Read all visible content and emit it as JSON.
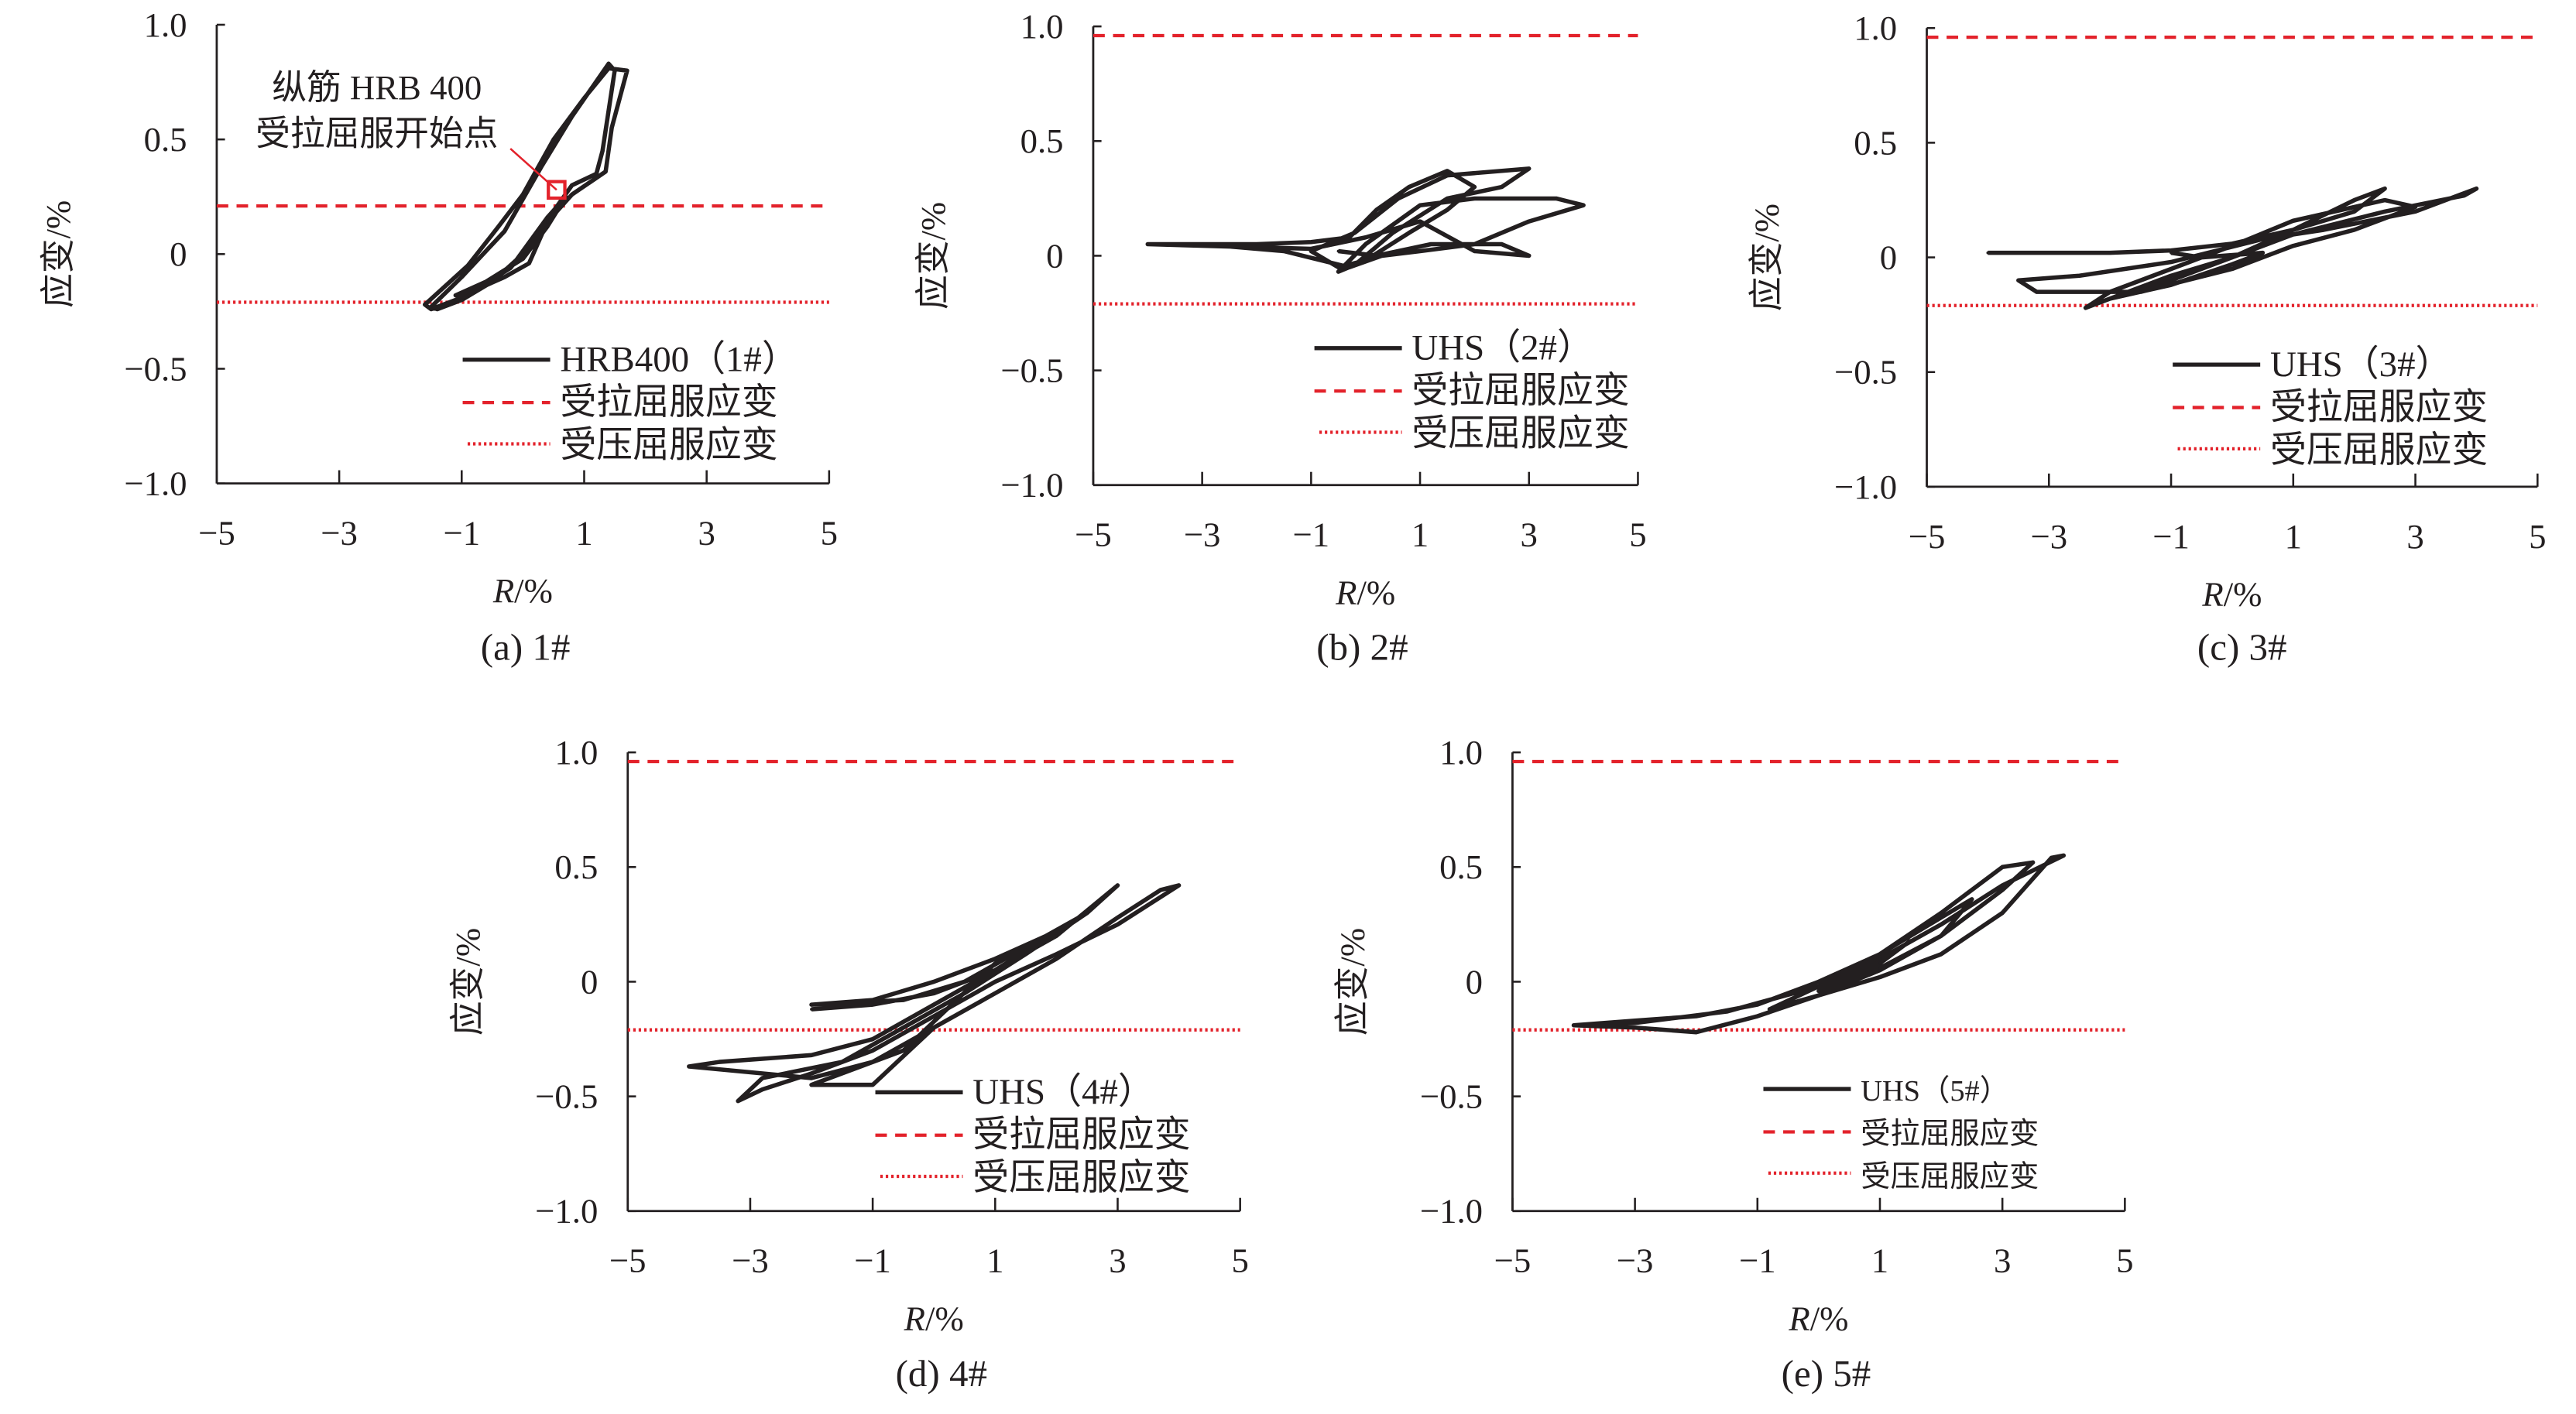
{
  "colors": {
    "curve": "#231f20",
    "yield": "#e3222b",
    "axis": "#231f20"
  },
  "chart_data": [
    {
      "id": "a",
      "type": "line",
      "caption": "(a) 1#",
      "xlabel_italic": "R",
      "xlabel_rest": "/%",
      "ylabel": "应变/%",
      "xlim": [
        -5,
        5
      ],
      "ylim": [
        -1.0,
        1.0
      ],
      "xticks": [
        "−5",
        "−3",
        "−1",
        "1",
        "3",
        "5"
      ],
      "xtick_values": [
        -5,
        -3,
        -1,
        1,
        3,
        5
      ],
      "yticks": [
        "1.0",
        "0.5",
        "0",
        "−0.5",
        "−1.0"
      ],
      "ytick_values": [
        1,
        0.5,
        0,
        -0.5,
        -1
      ],
      "tension_yield": 0.21,
      "compression_yield": -0.21,
      "legend": [
        "HRB400（1#）",
        "受拉屈服应变",
        "受压屈服应变"
      ],
      "annotation": {
        "lines": [
          "纵筋 HRB 400",
          "受拉屈服开始点"
        ],
        "point": [
          0.55,
          0.28
        ]
      },
      "series": [
        [
          0,
          0
        ],
        [
          -0.5,
          -0.12
        ],
        [
          -1.0,
          -0.2
        ],
        [
          -1.4,
          -0.24
        ],
        [
          -1.5,
          -0.23
        ],
        [
          -1.0,
          -0.1
        ],
        [
          -0.3,
          0.1
        ],
        [
          0.3,
          0.38
        ],
        [
          0.8,
          0.6
        ],
        [
          1.4,
          0.83
        ],
        [
          1.5,
          0.8
        ],
        [
          1.3,
          0.45
        ],
        [
          1.2,
          0.35
        ],
        [
          0.8,
          0.3
        ],
        [
          0.4,
          0.15
        ],
        [
          -0.2,
          -0.06
        ],
        [
          -0.9,
          -0.18
        ],
        [
          -1.5,
          -0.24
        ],
        [
          -1.6,
          -0.22
        ],
        [
          -0.9,
          -0.05
        ],
        [
          -0.4,
          0.12
        ],
        [
          0,
          0.26
        ],
        [
          0.5,
          0.5
        ],
        [
          1.0,
          0.68
        ],
        [
          1.4,
          0.81
        ],
        [
          1.7,
          0.8
        ],
        [
          1.45,
          0.55
        ],
        [
          1.35,
          0.36
        ],
        [
          0.8,
          0.26
        ],
        [
          0.4,
          0.14
        ],
        [
          0.1,
          -0.04
        ],
        [
          -0.3,
          -0.1
        ],
        [
          -0.8,
          -0.16
        ],
        [
          -1.1,
          -0.18
        ],
        [
          -0.6,
          -0.12
        ],
        [
          0.0,
          -0.02
        ],
        [
          0.4,
          0.12
        ],
        [
          0.7,
          0.25
        ],
        [
          0.4,
          0.16
        ],
        [
          -0.2,
          -0.06
        ]
      ]
    },
    {
      "id": "b",
      "type": "line",
      "caption": "(b) 2#",
      "xlabel_italic": "R",
      "xlabel_rest": "/%",
      "ylabel": "应变/%",
      "xlim": [
        -5,
        5
      ],
      "ylim": [
        -1.0,
        1.0
      ],
      "xticks": [
        "−5",
        "−3",
        "−1",
        "1",
        "3",
        "5"
      ],
      "xtick_values": [
        -5,
        -3,
        -1,
        1,
        3,
        5
      ],
      "yticks": [
        "1.0",
        "0.5",
        "0",
        "−0.5",
        "−1.0"
      ],
      "ytick_values": [
        1,
        0.5,
        0,
        -0.5,
        -1
      ],
      "tension_yield": 0.96,
      "compression_yield": -0.21,
      "legend": [
        "UHS（2#）",
        "受拉屈服应变",
        "受压屈服应变"
      ],
      "series": [
        [
          -4,
          0.05
        ],
        [
          -2,
          0.05
        ],
        [
          -1,
          0.06
        ],
        [
          -0.3,
          0.08
        ],
        [
          0.2,
          0.2
        ],
        [
          0.8,
          0.3
        ],
        [
          1.5,
          0.37
        ],
        [
          2,
          0.3
        ],
        [
          1.5,
          0.2
        ],
        [
          0.8,
          0.1
        ],
        [
          0,
          -0.02
        ],
        [
          -0.5,
          -0.05
        ],
        [
          -1,
          0.02
        ],
        [
          -0.2,
          0.1
        ],
        [
          0.6,
          0.25
        ],
        [
          1.5,
          0.35
        ],
        [
          3,
          0.38
        ],
        [
          2.5,
          0.3
        ],
        [
          1.5,
          0.25
        ],
        [
          0.5,
          0.1
        ],
        [
          -0.2,
          -0.04
        ],
        [
          -0.5,
          -0.07
        ],
        [
          0,
          0.05
        ],
        [
          1,
          0.22
        ],
        [
          2,
          0.25
        ],
        [
          3.5,
          0.25
        ],
        [
          4,
          0.22
        ],
        [
          3,
          0.15
        ],
        [
          2,
          0.05
        ],
        [
          1,
          0.02
        ],
        [
          0.3,
          0.0
        ],
        [
          -0.3,
          -0.05
        ],
        [
          -1.5,
          0.02
        ],
        [
          -3,
          0.05
        ],
        [
          -4,
          0.05
        ],
        [
          -1,
          0.03
        ],
        [
          0,
          0.08
        ],
        [
          1,
          0.15
        ],
        [
          2,
          0.02
        ],
        [
          3,
          0.0
        ],
        [
          2.5,
          0.05
        ],
        [
          1.2,
          0.05
        ],
        [
          0.2,
          0.0
        ],
        [
          -0.5,
          0.02
        ]
      ]
    },
    {
      "id": "c",
      "type": "line",
      "caption": "(c) 3#",
      "xlabel_italic": "R",
      "xlabel_rest": "/%",
      "ylabel": "应变/%",
      "xlim": [
        -5,
        5
      ],
      "ylim": [
        -1.0,
        1.0
      ],
      "xticks": [
        "−5",
        "−3",
        "−1",
        "1",
        "3",
        "5"
      ],
      "xtick_values": [
        -5,
        -3,
        -1,
        1,
        3,
        5
      ],
      "yticks": [
        "1.0",
        "0.5",
        "0",
        "−0.5",
        "−1.0"
      ],
      "ytick_values": [
        1,
        0.5,
        0,
        -0.5,
        -1
      ],
      "tension_yield": 0.96,
      "compression_yield": -0.21,
      "legend": [
        "UHS（3#）",
        "受拉屈服应变",
        "受压屈服应变"
      ],
      "series": [
        [
          -4,
          0.02
        ],
        [
          -2,
          0.02
        ],
        [
          -1,
          0.03
        ],
        [
          0,
          0.06
        ],
        [
          1,
          0.12
        ],
        [
          2,
          0.2
        ],
        [
          2.5,
          0.3
        ],
        [
          2,
          0.25
        ],
        [
          1,
          0.12
        ],
        [
          0,
          0.0
        ],
        [
          -1,
          -0.08
        ],
        [
          -2,
          -0.18
        ],
        [
          -2.4,
          -0.22
        ],
        [
          -2,
          -0.15
        ],
        [
          -1,
          -0.05
        ],
        [
          0,
          0.05
        ],
        [
          1,
          0.16
        ],
        [
          2.5,
          0.25
        ],
        [
          3,
          0.22
        ],
        [
          2,
          0.12
        ],
        [
          1,
          0.05
        ],
        [
          0,
          -0.05
        ],
        [
          -1.5,
          -0.15
        ],
        [
          -3.2,
          -0.15
        ],
        [
          -3.5,
          -0.1
        ],
        [
          -2.5,
          -0.08
        ],
        [
          -1,
          -0.02
        ],
        [
          0.5,
          0.08
        ],
        [
          1.5,
          0.12
        ],
        [
          3,
          0.2
        ],
        [
          4,
          0.3
        ],
        [
          3.8,
          0.27
        ],
        [
          2.5,
          0.2
        ],
        [
          1,
          0.1
        ],
        [
          0,
          0.0
        ],
        [
          -1,
          -0.1
        ],
        [
          -2,
          -0.18
        ],
        [
          -1,
          -0.12
        ],
        [
          0,
          -0.03
        ],
        [
          0.5,
          0.02
        ],
        [
          -0.5,
          0.0
        ],
        [
          -1,
          0.02
        ]
      ]
    },
    {
      "id": "d",
      "type": "line",
      "caption": "(d) 4#",
      "xlabel_italic": "R",
      "xlabel_rest": "/%",
      "ylabel": "应变/%",
      "xlim": [
        -5,
        5
      ],
      "ylim": [
        -1.0,
        1.0
      ],
      "xticks": [
        "−5",
        "−3",
        "−1",
        "1",
        "3",
        "5"
      ],
      "xtick_values": [
        -5,
        -3,
        -1,
        1,
        3,
        5
      ],
      "yticks": [
        "1.0",
        "0.5",
        "0",
        "−0.5",
        "−1.0"
      ],
      "ytick_values": [
        1,
        0.5,
        0,
        -0.5,
        -1
      ],
      "tension_yield": 0.96,
      "compression_yield": -0.21,
      "legend": [
        "UHS（4#）",
        "受拉屈服应变",
        "受压屈服应变"
      ],
      "series": [
        [
          -2,
          -0.12
        ],
        [
          -1,
          -0.1
        ],
        [
          0,
          -0.05
        ],
        [
          1,
          0.05
        ],
        [
          2,
          0.2
        ],
        [
          3,
          0.42
        ],
        [
          2.5,
          0.3
        ],
        [
          1.5,
          0.12
        ],
        [
          0.5,
          -0.05
        ],
        [
          -0.5,
          -0.2
        ],
        [
          -1.5,
          -0.35
        ],
        [
          -2.8,
          -0.42
        ],
        [
          -3.2,
          -0.52
        ],
        [
          -2.8,
          -0.47
        ],
        [
          -2,
          -0.4
        ],
        [
          -1,
          -0.3
        ],
        [
          0,
          -0.15
        ],
        [
          1,
          0.0
        ],
        [
          2,
          0.12
        ],
        [
          3,
          0.25
        ],
        [
          4,
          0.42
        ],
        [
          3.7,
          0.4
        ],
        [
          3,
          0.28
        ],
        [
          2,
          0.1
        ],
        [
          1,
          -0.05
        ],
        [
          0,
          -0.2
        ],
        [
          -1,
          -0.35
        ],
        [
          -2,
          -0.42
        ],
        [
          -4,
          -0.37
        ],
        [
          -3.5,
          -0.35
        ],
        [
          -2,
          -0.32
        ],
        [
          -1,
          -0.25
        ],
        [
          0,
          -0.1
        ],
        [
          1,
          0.05
        ],
        [
          2.5,
          0.3
        ],
        [
          1.5,
          0.15
        ],
        [
          0.5,
          0.0
        ],
        [
          -0.5,
          -0.08
        ],
        [
          -2,
          -0.1
        ],
        [
          -1,
          -0.08
        ],
        [
          0,
          0.0
        ],
        [
          1,
          0.1
        ],
        [
          2,
          0.22
        ],
        [
          1,
          0.08
        ],
        [
          -0.5,
          -0.3
        ],
        [
          -2,
          -0.45
        ],
        [
          -1,
          -0.45
        ],
        [
          0,
          -0.2
        ]
      ]
    },
    {
      "id": "e",
      "type": "line",
      "caption": "(e) 5#",
      "xlabel_italic": "R",
      "xlabel_rest": "/%",
      "ylabel": "应变/%",
      "xlim": [
        -5,
        5
      ],
      "ylim": [
        -1.0,
        1.0
      ],
      "xticks": [
        "−5",
        "−3",
        "−1",
        "1",
        "3",
        "5"
      ],
      "xtick_values": [
        -5,
        -3,
        -1,
        1,
        3,
        5
      ],
      "yticks": [
        "1.0",
        "0.5",
        "0",
        "−0.5",
        "−1.0"
      ],
      "ytick_values": [
        1,
        0.5,
        0,
        -0.5,
        -1
      ],
      "tension_yield": 0.96,
      "compression_yield": -0.21,
      "legend": [
        "UHS（5#）",
        "受拉屈服应变",
        "受压屈服应变"
      ],
      "series": [
        [
          -4,
          -0.19
        ],
        [
          -3,
          -0.17
        ],
        [
          -2,
          -0.15
        ],
        [
          -1,
          -0.1
        ],
        [
          0,
          0.0
        ],
        [
          1,
          0.12
        ],
        [
          2,
          0.3
        ],
        [
          3,
          0.5
        ],
        [
          3.5,
          0.52
        ],
        [
          3,
          0.4
        ],
        [
          2,
          0.2
        ],
        [
          1,
          0.05
        ],
        [
          0,
          -0.06
        ],
        [
          -1,
          -0.15
        ],
        [
          -2,
          -0.22
        ],
        [
          -3,
          -0.2
        ],
        [
          -4,
          -0.19
        ],
        [
          -3,
          -0.18
        ],
        [
          -1.5,
          -0.13
        ],
        [
          0,
          -0.02
        ],
        [
          1,
          0.1
        ],
        [
          2,
          0.25
        ],
        [
          3,
          0.42
        ],
        [
          4,
          0.55
        ],
        [
          3.8,
          0.54
        ],
        [
          3,
          0.3
        ],
        [
          2,
          0.12
        ],
        [
          1,
          0.02
        ],
        [
          0,
          -0.06
        ],
        [
          -0.8,
          -0.12
        ],
        [
          0,
          -0.02
        ],
        [
          1,
          0.12
        ],
        [
          2,
          0.28
        ],
        [
          2.5,
          0.36
        ],
        [
          2,
          0.2
        ],
        [
          1,
          0.06
        ],
        [
          0,
          -0.04
        ],
        [
          1,
          0.08
        ],
        [
          1.5,
          0.18
        ]
      ]
    }
  ]
}
